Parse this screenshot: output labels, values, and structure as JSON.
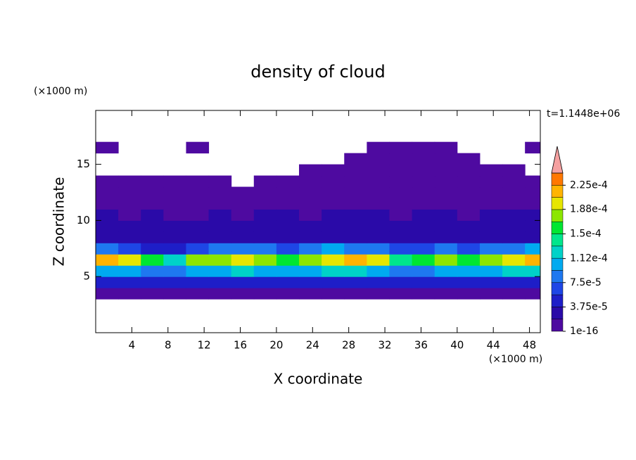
{
  "chart_data": {
    "type": "contour",
    "title": "density of cloud",
    "x_label": "X coordinate",
    "y_label": "Z coordinate",
    "x_unit": "(×1000 m)",
    "y_unit": "(×1000 m)",
    "annotation": "t=1.1448e+06",
    "xlim": [
      0,
      49.2
    ],
    "ylim": [
      0,
      19.8
    ],
    "xticks": [
      4,
      8,
      12,
      16,
      20,
      24,
      28,
      32,
      36,
      40,
      44,
      48
    ],
    "yticks": [
      5,
      10,
      15
    ],
    "levels": [
      1e-16,
      1.875e-05,
      3.75e-05,
      5.625e-05,
      7.5e-05,
      9.375e-05,
      0.0001125,
      0.00013125,
      0.00015,
      0.00016875,
      0.0001875,
      0.00020625,
      0.000225,
      0.00024375
    ],
    "colors": [
      "#4e0aa0",
      "#2a0aa8",
      "#1e1ec8",
      "#1e46e6",
      "#1e78f0",
      "#00aaf0",
      "#00d2c8",
      "#00e68c",
      "#00e632",
      "#8ce600",
      "#e6e600",
      "#ffb400",
      "#ff7800"
    ],
    "over_color": "#f5a0a0",
    "colorbar_ticks": [
      {
        "value": 1e-16,
        "label": "1e-16"
      },
      {
        "value": 3.75e-05,
        "label": "3.75e-5"
      },
      {
        "value": 7.5e-05,
        "label": "7.5e-5"
      },
      {
        "value": 0.000112,
        "label": "1.12e-4"
      },
      {
        "value": 0.00015,
        "label": "1.5e-4"
      },
      {
        "value": 0.000188,
        "label": "1.88e-4"
      },
      {
        "value": 0.000225,
        "label": "2.25e-4"
      }
    ],
    "x": [
      1.25,
      3.75,
      6.25,
      8.75,
      11.25,
      13.75,
      16.25,
      18.75,
      21.25,
      23.75,
      26.25,
      28.75,
      31.25,
      33.75,
      36.25,
      38.75,
      41.25,
      43.75,
      46.25,
      48.75
    ],
    "y": [
      0.5,
      1.5,
      2.5,
      3.5,
      4.5,
      5.5,
      6.5,
      7.5,
      8.5,
      9.5,
      10.5,
      11.5,
      12.5,
      13.5,
      14.5,
      15.5,
      16.5,
      17.5,
      18.5,
      19.5
    ],
    "z": [
      [
        null,
        null,
        null,
        null,
        null,
        null,
        null,
        null,
        null,
        null,
        null,
        null,
        null,
        null,
        null,
        null,
        null,
        null,
        null,
        null
      ],
      [
        null,
        null,
        null,
        null,
        null,
        null,
        null,
        null,
        null,
        null,
        null,
        null,
        null,
        null,
        null,
        null,
        null,
        null,
        null,
        null
      ],
      [
        null,
        null,
        null,
        null,
        null,
        null,
        null,
        null,
        null,
        null,
        null,
        null,
        null,
        null,
        null,
        null,
        null,
        null,
        null,
        null
      ],
      [
        1e-05,
        1e-05,
        1e-05,
        1e-05,
        1e-05,
        1e-05,
        1e-05,
        1e-05,
        1e-05,
        1e-05,
        1e-05,
        1e-05,
        1e-05,
        1e-05,
        1e-05,
        1e-05,
        1e-05,
        1e-05,
        1e-05,
        1e-05
      ],
      [
        4e-05,
        4e-05,
        4e-05,
        5e-05,
        4e-05,
        4e-05,
        5e-05,
        4e-05,
        4e-05,
        4e-05,
        5e-05,
        4e-05,
        4e-05,
        5e-05,
        4e-05,
        4e-05,
        4e-05,
        5e-05,
        4e-05,
        4e-05
      ],
      [
        0.00011,
        0.0001,
        9e-05,
        8e-05,
        0.0001,
        0.00011,
        0.00012,
        0.00011,
        0.0001,
        0.00011,
        0.00012,
        0.00012,
        0.00011,
        8e-05,
        9e-05,
        0.0001,
        0.0001,
        0.00011,
        0.00012,
        0.00012
      ],
      [
        0.00021,
        0.00019,
        0.00016,
        0.00013,
        0.00017,
        0.00018,
        0.00019,
        0.00017,
        0.00016,
        0.00018,
        0.0002,
        0.00021,
        0.00019,
        0.00014,
        0.00015,
        0.00017,
        0.00016,
        0.00018,
        0.0002,
        0.00022
      ],
      [
        8e-05,
        7e-05,
        5e-05,
        4e-05,
        7e-05,
        9e-05,
        9e-05,
        8e-05,
        7e-05,
        8e-05,
        0.0001,
        9e-05,
        8e-05,
        6e-05,
        6e-05,
        8e-05,
        7e-05,
        8e-05,
        9e-05,
        0.0001
      ],
      [
        3e-05,
        3e-05,
        2.5e-05,
        2e-05,
        3e-05,
        3e-05,
        3e-05,
        3e-05,
        3e-05,
        3e-05,
        3e-05,
        3e-05,
        3e-05,
        2.5e-05,
        2.5e-05,
        3e-05,
        3e-05,
        3e-05,
        3e-05,
        3e-05
      ],
      [
        2.5e-05,
        2e-05,
        2e-05,
        2e-05,
        2e-05,
        2.5e-05,
        2e-05,
        2e-05,
        2.5e-05,
        2e-05,
        2e-05,
        2.5e-05,
        2e-05,
        2e-05,
        2e-05,
        2.5e-05,
        2e-05,
        2e-05,
        2e-05,
        2.5e-05
      ],
      [
        2e-05,
        1e-05,
        2e-05,
        1e-05,
        1e-05,
        2e-05,
        1e-05,
        2e-05,
        2e-05,
        1e-05,
        2e-05,
        2e-05,
        2e-05,
        1e-05,
        2e-05,
        2e-05,
        1e-05,
        2e-05,
        2e-05,
        2e-05
      ],
      [
        1e-05,
        1e-05,
        1e-05,
        1e-05,
        1e-05,
        1e-05,
        1e-05,
        1e-05,
        1e-05,
        1e-05,
        1e-05,
        1e-05,
        1e-05,
        1e-05,
        1e-05,
        1e-05,
        1e-05,
        1e-05,
        1e-05,
        1e-05
      ],
      [
        5e-06,
        5e-06,
        5e-06,
        5e-06,
        5e-06,
        5e-06,
        5e-06,
        5e-06,
        1e-05,
        1e-05,
        1e-05,
        1e-05,
        1e-05,
        1e-05,
        1e-05,
        1e-05,
        1e-05,
        1e-05,
        5e-06,
        5e-06
      ],
      [
        1e-06,
        1e-06,
        1e-06,
        1e-06,
        1e-06,
        1e-06,
        null,
        1e-06,
        1e-06,
        1e-06,
        1e-06,
        1e-06,
        1e-06,
        1e-06,
        1e-06,
        1e-06,
        1e-06,
        1e-06,
        1e-06,
        1e-06
      ],
      [
        null,
        null,
        null,
        null,
        null,
        null,
        null,
        null,
        null,
        1e-06,
        1e-06,
        1e-06,
        1e-06,
        1e-06,
        1e-06,
        1e-06,
        1e-06,
        1e-06,
        1e-06,
        null
      ],
      [
        null,
        null,
        null,
        null,
        null,
        null,
        null,
        null,
        null,
        null,
        null,
        1e-06,
        1e-06,
        1e-06,
        1e-06,
        1e-06,
        1e-06,
        null,
        null,
        null
      ],
      [
        1e-06,
        null,
        null,
        null,
        1e-06,
        null,
        null,
        null,
        null,
        null,
        null,
        null,
        1e-06,
        1e-06,
        1e-06,
        1e-06,
        null,
        null,
        null,
        1e-06
      ],
      [
        null,
        null,
        null,
        null,
        null,
        null,
        null,
        null,
        null,
        null,
        null,
        null,
        null,
        null,
        null,
        null,
        null,
        null,
        null,
        null
      ],
      [
        null,
        null,
        null,
        null,
        null,
        null,
        null,
        null,
        null,
        null,
        null,
        null,
        null,
        null,
        null,
        null,
        null,
        null,
        null,
        null
      ],
      [
        null,
        null,
        null,
        null,
        null,
        null,
        null,
        null,
        null,
        null,
        null,
        null,
        null,
        null,
        null,
        null,
        null,
        null,
        null,
        null
      ]
    ]
  }
}
